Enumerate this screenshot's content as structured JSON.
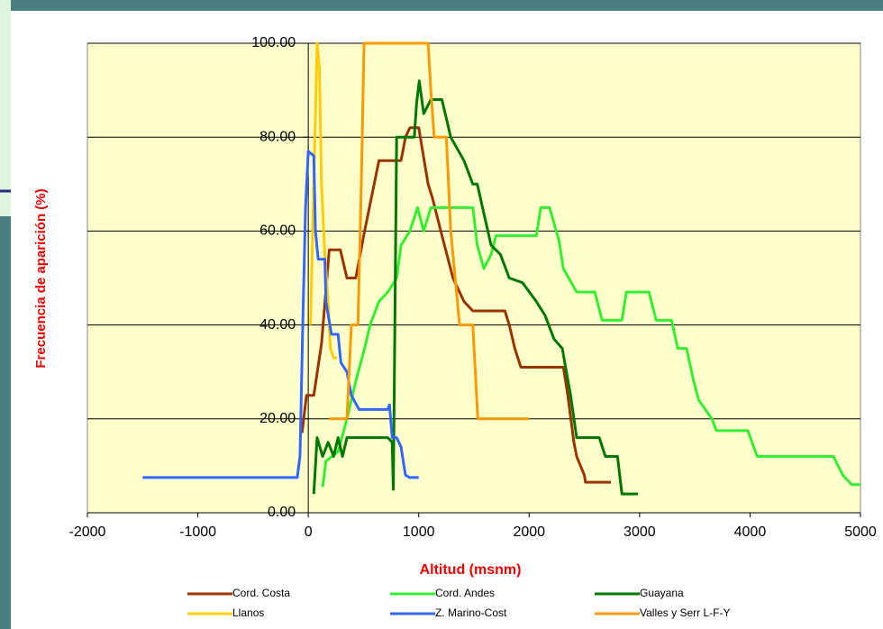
{
  "chart_data": {
    "type": "line",
    "xlabel": "Altitud (msnm)",
    "ylabel": "Frecuencia de aparición (%)",
    "xlim": [
      -2000,
      5000
    ],
    "xticks": [
      -2000,
      -1000,
      0,
      1000,
      2000,
      3000,
      4000,
      5000
    ],
    "ylim": [
      0,
      100
    ],
    "yticks": [
      {
        "value": 0,
        "label": "0.00"
      },
      {
        "value": 20,
        "label": "20.00"
      },
      {
        "value": 40,
        "label": "40.00"
      },
      {
        "value": 60,
        "label": "60.00"
      },
      {
        "value": 80,
        "label": "80.00"
      },
      {
        "value": 100,
        "label": "100.00"
      }
    ],
    "grid": true,
    "legend": "bottom",
    "series": [
      {
        "name": "Cord. Costa",
        "color": "#993300",
        "x": [
          -57,
          -16,
          50,
          120,
          190,
          290,
          350,
          430,
          510,
          640,
          840,
          880,
          920,
          1000,
          1085,
          1125,
          1200,
          1310,
          1410,
          1490,
          1780,
          1820,
          1870,
          1925,
          2310,
          2350,
          2405,
          2430,
          2500,
          2510,
          2740
        ],
        "values": [
          17,
          25,
          25,
          36,
          56,
          56,
          50,
          50,
          60,
          75,
          75,
          80,
          82,
          82,
          70,
          67,
          60,
          50,
          45,
          43,
          43,
          40,
          35,
          31,
          31,
          25,
          15,
          12,
          8,
          6.5,
          6.5
        ]
      },
      {
        "name": "Cord. Andes",
        "color": "#33ee33",
        "x": [
          130,
          160,
          270,
          350,
          430,
          510,
          560,
          640,
          720,
          800,
          840,
          920,
          990,
          1045,
          1110,
          1490,
          1530,
          1590,
          1655,
          1700,
          2065,
          2105,
          2185,
          2270,
          2310,
          2430,
          2595,
          2660,
          2840,
          2880,
          3085,
          3150,
          3290,
          3345,
          3425,
          3490,
          3535,
          3655,
          3695,
          3980,
          4065,
          4755,
          4840,
          4920,
          5000
        ],
        "values": [
          5.5,
          11,
          13,
          20,
          28,
          35,
          40,
          45,
          47,
          50,
          57,
          60,
          65,
          60,
          65,
          65,
          57,
          52,
          55,
          59,
          59,
          65,
          65,
          58,
          52,
          47,
          47,
          41,
          41,
          47,
          47,
          41,
          41,
          35,
          35,
          28,
          24,
          20,
          17.5,
          17.5,
          12,
          12,
          8,
          6,
          6
        ]
      },
      {
        "name": "Guayana",
        "color": "#007700",
        "x": [
          50,
          80,
          130,
          180,
          230,
          270,
          310,
          350,
          720,
          760,
          770,
          800,
          960,
          980,
          1005,
          1045,
          1110,
          1210,
          1290,
          1410,
          1490,
          1530,
          1655,
          1740,
          1820,
          1940,
          2065,
          2145,
          2225,
          2300,
          2375,
          2430,
          2635,
          2690,
          2800,
          2840,
          2985
        ],
        "values": [
          4,
          16,
          12,
          15,
          12,
          16,
          12,
          16,
          16,
          15,
          5,
          80,
          80,
          87,
          92,
          85,
          88,
          88,
          80,
          75,
          70,
          70,
          57,
          55,
          50,
          49,
          45,
          42,
          37,
          35,
          25,
          16,
          16,
          12,
          12,
          4,
          4
        ]
      },
      {
        "name": "Llanos",
        "color": "#ffcc00",
        "x": [
          20,
          50,
          80,
          100,
          120,
          150,
          180,
          200,
          230,
          260
        ],
        "values": [
          40,
          70,
          100,
          95,
          70,
          55,
          45,
          35,
          33,
          33
        ]
      },
      {
        "name": "Z. Marino-Cost",
        "color": "#3366ff",
        "x": [
          -1500,
          -100,
          -75,
          -50,
          -25,
          0,
          50,
          65,
          90,
          150,
          160,
          210,
          270,
          295,
          350,
          390,
          460,
          720,
          735,
          760,
          800,
          840,
          880,
          920,
          1000
        ],
        "values": [
          7.5,
          7.5,
          12,
          40,
          65,
          77,
          76,
          60,
          54,
          54,
          45,
          38,
          38,
          32,
          30,
          25,
          22,
          22,
          23,
          16,
          16,
          14,
          8,
          7.5,
          7.5
        ]
      },
      {
        "name": "Valles y Serr L-F-Y",
        "color": "#ff9900",
        "x": [
          190,
          350,
          390,
          450,
          480,
          505,
          1085,
          1110,
          1140,
          1250,
          1290,
          1330,
          1370,
          1490,
          1535,
          2000
        ],
        "values": [
          20,
          20,
          40,
          40,
          70,
          100,
          100,
          90,
          80,
          80,
          60,
          50,
          40,
          40,
          20,
          20
        ]
      }
    ]
  }
}
